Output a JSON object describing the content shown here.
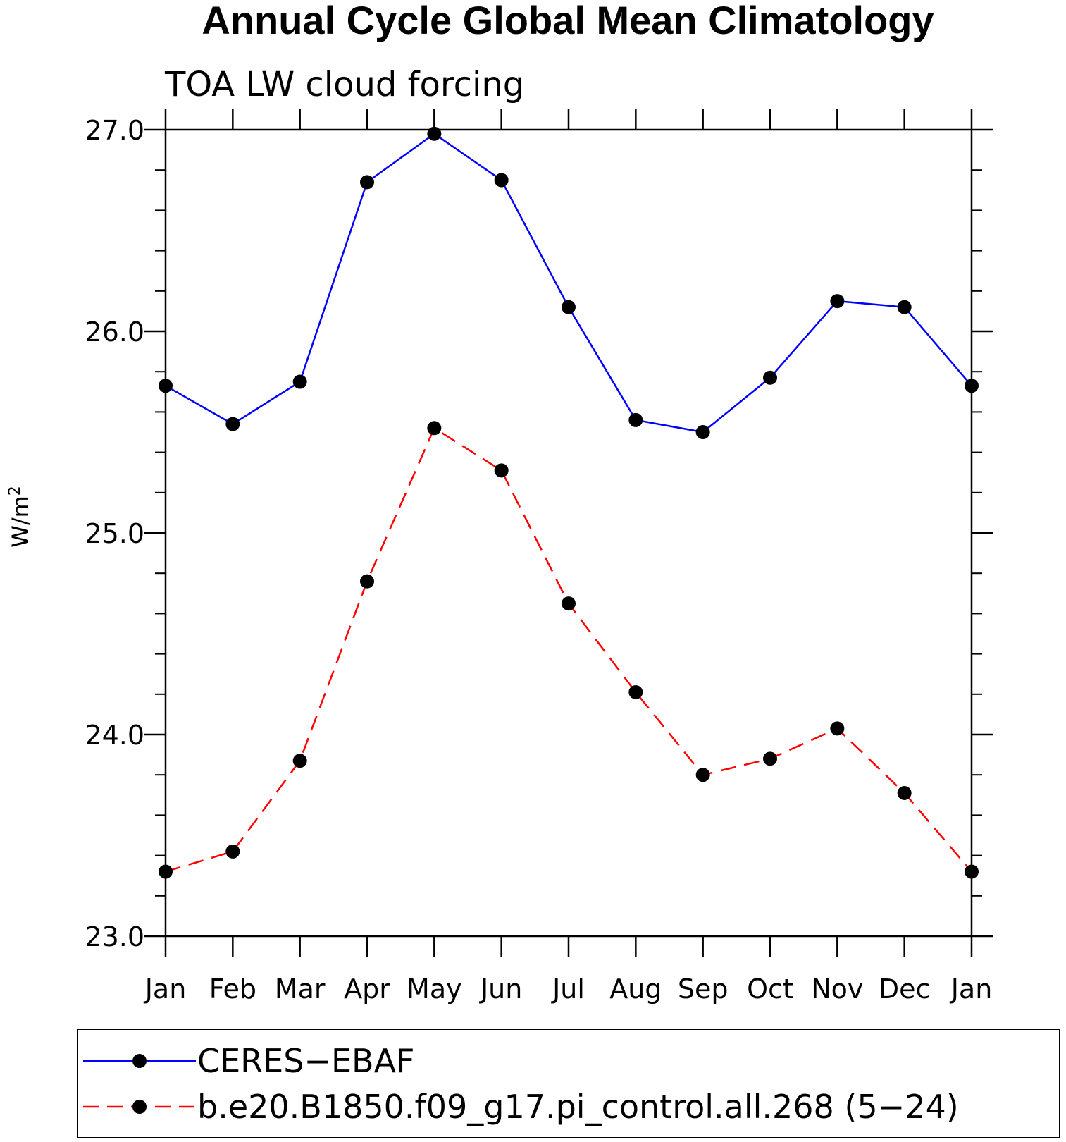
{
  "chart_data": {
    "type": "line",
    "title": "Annual Cycle Global Mean Climatology",
    "subtitle": "TOA LW cloud forcing",
    "xlabel": "",
    "ylabel": "W/m",
    "ylabel_superscript": "2",
    "categories": [
      "Jan",
      "Feb",
      "Mar",
      "Apr",
      "May",
      "Jun",
      "Jul",
      "Aug",
      "Sep",
      "Oct",
      "Nov",
      "Dec",
      "Jan"
    ],
    "ylim": [
      23.0,
      27.0
    ],
    "yticks": [
      "23.0",
      "24.0",
      "25.0",
      "26.0",
      "27.0"
    ],
    "grid": false,
    "legend_position": "bottom",
    "series": [
      {
        "name": "CERES−EBAF",
        "color": "#0000ff",
        "dash": "solid",
        "marker": "filled-circle",
        "values": [
          25.73,
          25.54,
          25.75,
          26.74,
          26.98,
          26.75,
          26.12,
          25.56,
          25.5,
          25.77,
          26.15,
          26.12,
          25.73
        ]
      },
      {
        "name": "b.e20.B1850.f09_g17.pi_control.all.268 (5−24)",
        "color": "#ff0000",
        "dash": "dashed",
        "marker": "filled-circle",
        "values": [
          23.32,
          23.42,
          23.87,
          24.76,
          25.52,
          25.31,
          24.65,
          24.21,
          23.8,
          23.88,
          24.03,
          23.71,
          23.32
        ]
      }
    ]
  }
}
